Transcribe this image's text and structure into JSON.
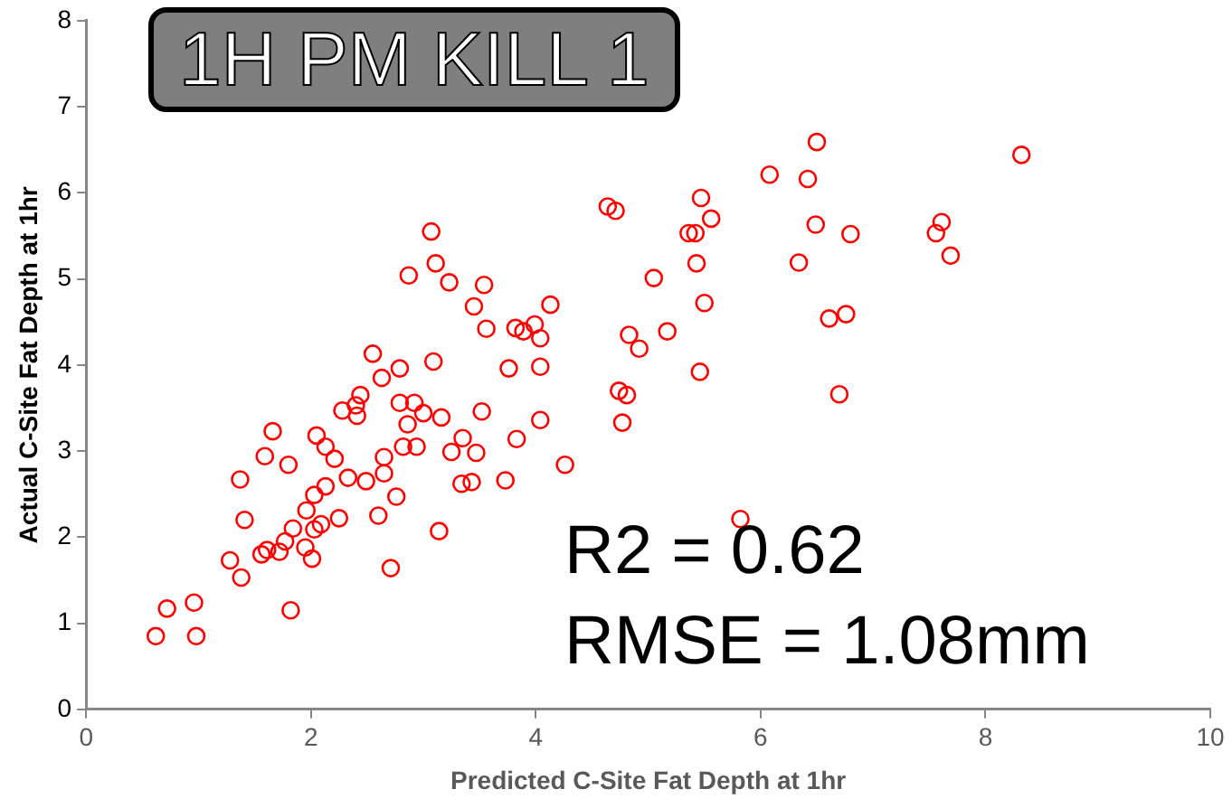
{
  "chart_data": {
    "type": "scatter",
    "title": "1H PM KILL 1",
    "xlabel": "Predicted C-Site Fat Depth at 1hr",
    "ylabel": "Actual C-Site Fat Depth at 1hr",
    "annotations": [
      "R2 = 0.62",
      "RMSE = 1.08mm"
    ],
    "xlim": [
      0,
      10
    ],
    "xticks": [
      0,
      2,
      4,
      6,
      8,
      10
    ],
    "ylim": [
      0,
      8
    ],
    "yticks": [
      0,
      1,
      2,
      3,
      4,
      5,
      6,
      7,
      8
    ],
    "grid": false,
    "legend": false,
    "marker": "circle",
    "series": [
      {
        "color": "#ff0000",
        "x": [
          0.62,
          0.72,
          0.98,
          0.96,
          1.28,
          1.38,
          1.41,
          1.37,
          1.59,
          1.66,
          1.8,
          1.56,
          1.61,
          1.72,
          1.77,
          1.84,
          1.82,
          1.95,
          2.01,
          1.96,
          2.03,
          2.09,
          2.03,
          2.13,
          2.25,
          2.33,
          2.49,
          2.05,
          2.13,
          2.21,
          2.28,
          2.4,
          2.41,
          2.44,
          2.55,
          3.07,
          3.11,
          2.87,
          3.23,
          3.54,
          3.45,
          4.13,
          3.56,
          3.82,
          3.89,
          3.99,
          4.04,
          2.79,
          2.63,
          3.09,
          3.76,
          4.04,
          2.79,
          2.92,
          3.0,
          3.16,
          3.52,
          2.86,
          4.04,
          2.82,
          2.94,
          3.35,
          3.25,
          3.47,
          3.83,
          2.65,
          2.65,
          2.76,
          2.6,
          3.34,
          3.43,
          3.73,
          4.26,
          3.14,
          2.71,
          4.64,
          4.71,
          4.83,
          4.92,
          4.74,
          4.81,
          4.77,
          5.05,
          6.5,
          6.08,
          6.42,
          5.47,
          5.56,
          5.36,
          5.42,
          6.49,
          6.8,
          5.43,
          6.34,
          5.5,
          5.17,
          6.61,
          6.76,
          5.46,
          6.7,
          5.82,
          7.56,
          8.32,
          7.61,
          7.69
        ],
        "values": [
          0.85,
          1.17,
          0.85,
          1.24,
          1.73,
          1.53,
          2.2,
          2.67,
          2.94,
          3.23,
          2.84,
          1.8,
          1.85,
          1.83,
          1.95,
          2.1,
          1.15,
          1.88,
          1.75,
          2.31,
          2.09,
          2.15,
          2.49,
          2.59,
          2.22,
          2.69,
          2.65,
          3.18,
          3.05,
          2.91,
          3.47,
          3.53,
          3.41,
          3.65,
          4.13,
          5.55,
          5.18,
          5.04,
          4.96,
          4.93,
          4.68,
          4.7,
          4.42,
          4.43,
          4.39,
          4.47,
          4.31,
          3.96,
          3.85,
          4.04,
          3.96,
          3.98,
          3.56,
          3.56,
          3.44,
          3.39,
          3.46,
          3.31,
          3.36,
          3.05,
          3.05,
          3.15,
          2.99,
          2.98,
          3.14,
          2.93,
          2.74,
          2.47,
          2.25,
          2.62,
          2.64,
          2.66,
          2.84,
          2.07,
          1.64,
          5.84,
          5.79,
          4.35,
          4.19,
          3.7,
          3.65,
          3.33,
          5.01,
          6.59,
          6.21,
          6.16,
          5.94,
          5.7,
          5.53,
          5.53,
          5.63,
          5.52,
          5.18,
          5.19,
          4.72,
          4.39,
          4.54,
          4.59,
          3.92,
          3.66,
          2.21,
          5.53,
          6.44,
          5.66,
          5.27
        ]
      }
    ]
  }
}
